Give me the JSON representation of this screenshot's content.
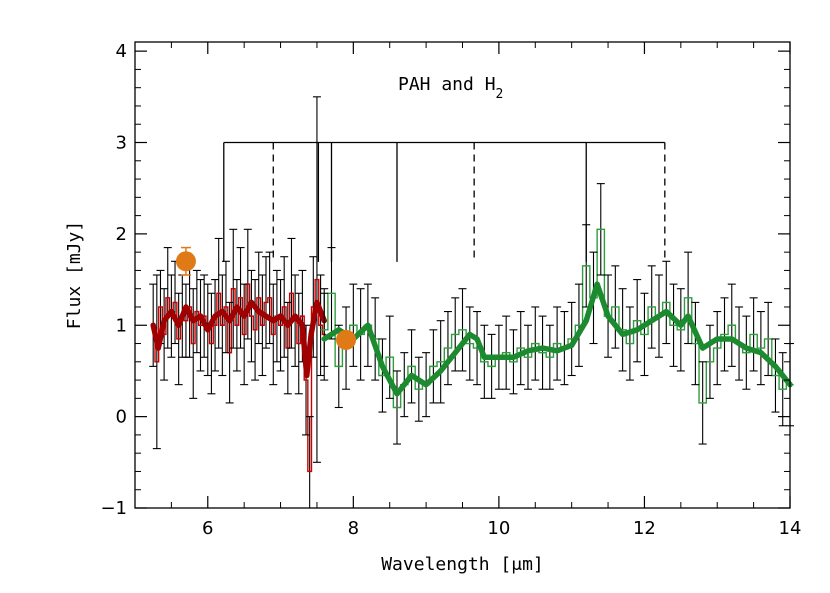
{
  "chart_data": {
    "type": "line",
    "xlabel": "Wavelength [μm]",
    "ylabel": "Flux [mJy]",
    "xlim": [
      5.0,
      14.0
    ],
    "ylim": [
      -1.0,
      4.1
    ],
    "x_ticks": [
      6,
      8,
      10,
      12,
      14
    ],
    "y_ticks": [
      -1,
      0,
      1,
      2,
      3,
      4
    ],
    "grid": false,
    "annotation": {
      "text_main": "PAH and H",
      "text_sub": "2",
      "bracket_level": 3.0,
      "solid_lines": [
        6.22,
        7.52,
        7.7,
        8.6,
        11.2
      ],
      "dashed_lines": [
        6.9,
        9.66,
        12.28
      ]
    },
    "series": [
      {
        "color": "#cc0000",
        "style": "step-with-errorbars",
        "x": [
          5.25,
          5.3,
          5.35,
          5.4,
          5.45,
          5.5,
          5.55,
          5.6,
          5.65,
          5.7,
          5.75,
          5.8,
          5.85,
          5.9,
          5.95,
          6.0,
          6.05,
          6.1,
          6.15,
          6.2,
          6.25,
          6.3,
          6.35,
          6.4,
          6.45,
          6.5,
          6.55,
          6.6,
          6.65,
          6.7,
          6.75,
          6.8,
          6.85,
          6.9,
          6.95,
          7.0,
          7.05,
          7.1,
          7.15,
          7.2,
          7.25,
          7.3,
          7.35,
          7.4,
          7.45,
          7.5,
          7.55,
          7.6
        ],
        "y": [
          1.0,
          0.6,
          1.2,
          0.9,
          1.3,
          1.1,
          1.25,
          0.85,
          1.1,
          1.05,
          1.2,
          0.8,
          1.15,
          1.0,
          1.1,
          0.95,
          0.8,
          1.0,
          1.35,
          1.0,
          1.2,
          0.7,
          1.4,
          1.0,
          1.3,
          0.9,
          1.45,
          1.1,
          0.95,
          1.3,
          1.0,
          1.25,
          1.3,
          0.9,
          1.1,
          1.0,
          1.2,
          0.75,
          1.35,
          1.05,
          0.8,
          1.1,
          0.4,
          -0.6,
          1.2,
          1.5,
          1.0,
          0.9
        ],
        "yerr": [
          0.45,
          0.95,
          0.4,
          0.5,
          0.55,
          0.45,
          0.45,
          0.5,
          0.45,
          0.4,
          0.55,
          0.6,
          0.45,
          0.5,
          0.45,
          0.5,
          0.55,
          0.5,
          0.6,
          0.55,
          0.5,
          0.55,
          0.65,
          0.5,
          0.55,
          0.55,
          0.6,
          0.5,
          0.55,
          0.5,
          0.55,
          0.5,
          0.5,
          0.55,
          0.5,
          0.5,
          0.55,
          0.5,
          0.6,
          0.5,
          0.55,
          0.5,
          0.6,
          0.6,
          0.55,
          2.0,
          0.55,
          0.5
        ]
      },
      {
        "color": "#a00000",
        "style": "thick-smooth",
        "x": [
          5.25,
          5.32,
          5.4,
          5.5,
          5.6,
          5.7,
          5.8,
          5.9,
          6.0,
          6.1,
          6.2,
          6.3,
          6.4,
          6.5,
          6.6,
          6.7,
          6.8,
          6.9,
          7.0,
          7.1,
          7.2,
          7.3,
          7.36,
          7.42,
          7.5,
          7.6
        ],
        "y": [
          1.0,
          0.75,
          1.05,
          1.15,
          1.0,
          1.2,
          1.05,
          1.1,
          0.95,
          1.1,
          1.15,
          1.05,
          1.2,
          1.1,
          1.25,
          1.15,
          1.1,
          1.05,
          1.1,
          1.0,
          1.1,
          1.0,
          0.45,
          0.9,
          1.25,
          1.05
        ]
      },
      {
        "color": "#2e9e3e",
        "style": "step-with-errorbars",
        "x": [
          7.6,
          7.7,
          7.8,
          7.9,
          8.0,
          8.1,
          8.2,
          8.3,
          8.4,
          8.5,
          8.6,
          8.7,
          8.8,
          8.9,
          9.0,
          9.1,
          9.2,
          9.3,
          9.4,
          9.5,
          9.6,
          9.7,
          9.8,
          9.9,
          10.0,
          10.1,
          10.2,
          10.3,
          10.4,
          10.5,
          10.6,
          10.7,
          10.8,
          10.9,
          11.0,
          11.1,
          11.2,
          11.3,
          11.4,
          11.5,
          11.6,
          11.7,
          11.8,
          11.9,
          12.0,
          12.1,
          12.2,
          12.3,
          12.4,
          12.5,
          12.6,
          12.7,
          12.8,
          12.9,
          13.0,
          13.1,
          13.2,
          13.3,
          13.4,
          13.5,
          13.6,
          13.7,
          13.8,
          13.9,
          14.0
        ],
        "y": [
          0.95,
          1.35,
          0.55,
          0.75,
          1.0,
          0.9,
          1.0,
          0.85,
          0.45,
          0.65,
          0.1,
          0.35,
          0.55,
          0.3,
          0.35,
          0.55,
          0.6,
          0.75,
          0.9,
          0.95,
          0.8,
          0.75,
          0.6,
          0.55,
          0.65,
          0.7,
          0.6,
          0.75,
          0.65,
          0.8,
          0.7,
          0.65,
          0.8,
          0.75,
          0.85,
          1.0,
          1.65,
          1.3,
          2.05,
          1.1,
          1.2,
          0.95,
          0.8,
          1.05,
          0.9,
          1.2,
          1.1,
          1.25,
          1.0,
          0.95,
          1.3,
          0.8,
          0.15,
          0.6,
          0.75,
          0.9,
          1.0,
          0.8,
          0.7,
          0.9,
          0.75,
          0.85,
          0.45,
          0.3,
          0.35
        ],
        "yerr": [
          0.4,
          0.5,
          0.45,
          0.45,
          0.45,
          0.5,
          0.45,
          0.45,
          0.4,
          0.45,
          0.4,
          0.35,
          0.4,
          0.35,
          0.35,
          0.4,
          0.45,
          0.4,
          0.4,
          0.45,
          0.4,
          0.4,
          0.4,
          0.35,
          0.35,
          0.4,
          0.35,
          0.4,
          0.35,
          0.4,
          0.4,
          0.35,
          0.4,
          0.4,
          0.4,
          0.45,
          0.45,
          0.5,
          0.5,
          0.45,
          0.45,
          0.45,
          0.4,
          0.45,
          0.45,
          0.45,
          0.45,
          0.45,
          0.45,
          0.45,
          0.5,
          0.45,
          0.45,
          0.4,
          0.4,
          0.4,
          0.45,
          0.4,
          0.4,
          0.4,
          0.4,
          0.4,
          0.4,
          0.4,
          0.45
        ]
      },
      {
        "color": "#1c8a2e",
        "style": "thick-smooth",
        "x": [
          7.6,
          7.8,
          8.0,
          8.2,
          8.4,
          8.6,
          8.8,
          9.0,
          9.2,
          9.4,
          9.6,
          9.7,
          9.8,
          10.0,
          10.2,
          10.4,
          10.6,
          10.8,
          11.0,
          11.2,
          11.35,
          11.5,
          11.7,
          11.9,
          12.1,
          12.3,
          12.5,
          12.6,
          12.8,
          13.0,
          13.2,
          13.4,
          13.6,
          13.8,
          14.0
        ],
        "y": [
          0.85,
          0.95,
          0.85,
          1.0,
          0.55,
          0.25,
          0.45,
          0.35,
          0.5,
          0.7,
          0.9,
          0.85,
          0.65,
          0.65,
          0.65,
          0.72,
          0.75,
          0.72,
          0.78,
          1.05,
          1.45,
          1.1,
          0.9,
          0.95,
          1.05,
          1.15,
          1.0,
          1.1,
          0.75,
          0.85,
          0.85,
          0.75,
          0.7,
          0.55,
          0.35
        ]
      },
      {
        "color": "#e07a16",
        "style": "points",
        "x": [
          5.7,
          7.9
        ],
        "y": [
          1.7,
          0.84
        ],
        "yerr": [
          0.15,
          0.05
        ]
      }
    ]
  }
}
